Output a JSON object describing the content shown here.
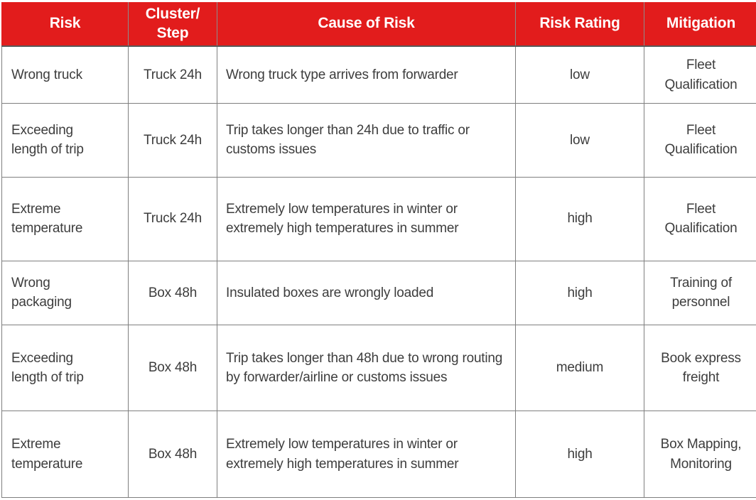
{
  "colors": {
    "header_background": "#e21c1c",
    "header_text": "#ffffff",
    "body_text": "#3d3d3d",
    "grid_border": "#7f7f7f"
  },
  "table": {
    "headers": [
      "Risk",
      "Cluster/\nStep",
      "Cause of Risk",
      "Risk Rating",
      "Mitigation"
    ],
    "rows": [
      {
        "cells": [
          "Wrong truck",
          "Truck 24h",
          "Wrong truck type arrives from forwarder",
          "low",
          "Fleet Qualification"
        ]
      },
      {
        "cells": [
          "Exceeding length of trip",
          "Truck 24h",
          "Trip takes longer than 24h due to traffic or customs issues",
          "low",
          "Fleet Qualification"
        ]
      },
      {
        "cells": [
          "Extreme temperature",
          "Truck 24h",
          "Extremely low temperatures in winter or extremely high temperatures in summer",
          "high",
          "Fleet Qualification"
        ]
      },
      {
        "cells": [
          "Wrong packaging",
          "Box 48h",
          "Insulated boxes are wrongly loaded",
          "high",
          "Training of personnel"
        ]
      },
      {
        "cells": [
          "Exceeding length of trip",
          "Box 48h",
          "Trip takes longer than 48h due to wrong routing by forwarder/airline or customs issues",
          "medium",
          "Book express freight"
        ]
      },
      {
        "cells": [
          "Extreme temperature",
          "Box 48h",
          "Extremely low temperatures in winter or extremely high temperatures in summer",
          "high",
          "Box Mapping, Monitoring"
        ]
      }
    ]
  }
}
